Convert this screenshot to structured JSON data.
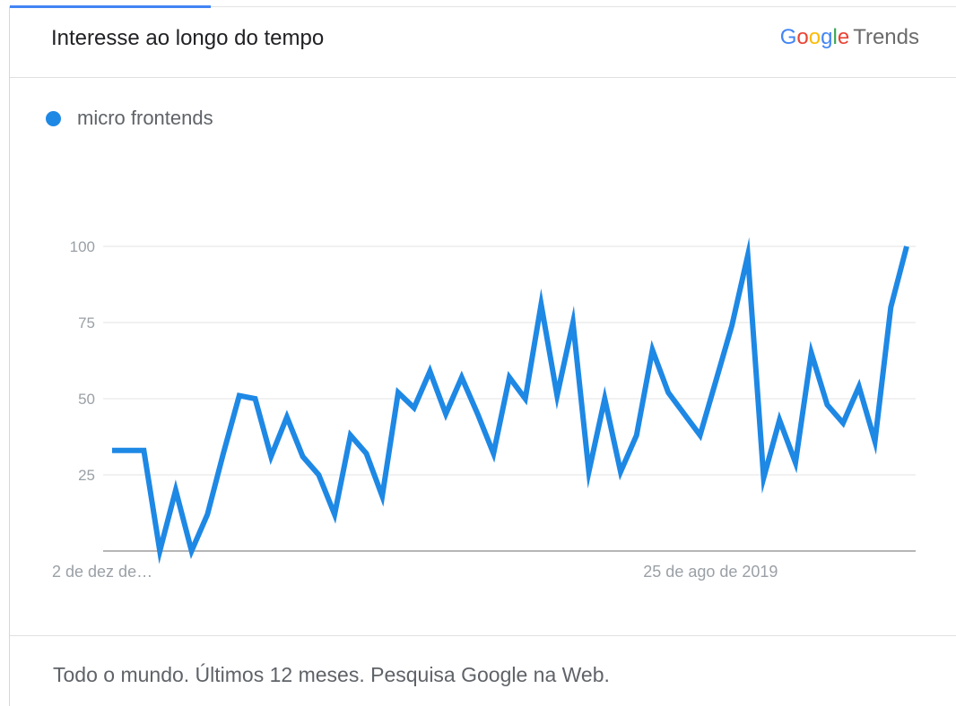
{
  "header": {
    "title": "Interesse ao longo do tempo",
    "brand": {
      "letters": [
        {
          "char": "G",
          "color": "#4285f4"
        },
        {
          "char": "o",
          "color": "#ea4335"
        },
        {
          "char": "o",
          "color": "#fbbc05"
        },
        {
          "char": "g",
          "color": "#4285f4"
        },
        {
          "char": "l",
          "color": "#34a853"
        },
        {
          "char": "e",
          "color": "#ea4335"
        }
      ],
      "word": "Trends"
    }
  },
  "legend": {
    "label": "micro frontends",
    "color": "#1e88e5"
  },
  "chart_data": {
    "type": "line",
    "title": "",
    "xlabel": "",
    "ylabel": "",
    "ylim": [
      0,
      100
    ],
    "yticks": [
      25,
      50,
      75,
      100
    ],
    "grid": true,
    "x_tick_labels": [
      {
        "index": 0,
        "label": "2 de dez de…"
      },
      {
        "index": 38,
        "label": "25 de ago de 2019"
      }
    ],
    "series": [
      {
        "name": "micro frontends",
        "color": "#1e88e5",
        "values": [
          33,
          33,
          33,
          0,
          20,
          0,
          12,
          32,
          51,
          50,
          31,
          44,
          31,
          25,
          12,
          38,
          32,
          18,
          52,
          47,
          59,
          45,
          57,
          45,
          32,
          57,
          50,
          81,
          51,
          75,
          26,
          50,
          26,
          38,
          66,
          52,
          45,
          38,
          56,
          74,
          97,
          24,
          43,
          29,
          65,
          48,
          42,
          54,
          36,
          80,
          100
        ]
      }
    ]
  },
  "footer": {
    "text": "Todo o mundo. Últimos 12 meses. Pesquisa Google na Web."
  }
}
